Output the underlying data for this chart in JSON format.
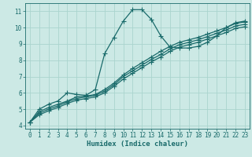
{
  "xlabel": "Humidex (Indice chaleur)",
  "bg_color": "#cce9e5",
  "line_color": "#1a6b6b",
  "grid_color": "#aad4ce",
  "xlim": [
    -0.5,
    23.5
  ],
  "ylim": [
    3.8,
    11.5
  ],
  "xticks": [
    0,
    1,
    2,
    3,
    4,
    5,
    6,
    7,
    8,
    9,
    10,
    11,
    12,
    13,
    14,
    15,
    16,
    17,
    18,
    19,
    20,
    21,
    22,
    23
  ],
  "yticks": [
    4,
    5,
    6,
    7,
    8,
    9,
    10,
    11
  ],
  "line1_x": [
    0,
    1,
    2,
    3,
    4,
    5,
    6,
    7,
    8,
    9,
    10,
    11,
    12,
    13,
    14,
    15,
    16,
    17,
    18,
    19,
    20,
    21,
    22,
    23
  ],
  "line1_y": [
    4.2,
    5.0,
    5.3,
    5.5,
    6.0,
    5.9,
    5.85,
    6.2,
    8.4,
    9.4,
    10.4,
    11.1,
    11.1,
    10.5,
    9.5,
    8.8,
    8.75,
    8.75,
    8.85,
    9.1,
    9.5,
    10.0,
    10.3,
    10.4
  ],
  "line2_x": [
    0,
    1,
    2,
    3,
    4,
    5,
    6,
    7,
    8,
    9,
    10,
    11,
    12,
    13,
    14,
    15,
    16,
    17,
    18,
    19,
    20,
    21,
    22,
    23
  ],
  "line2_y": [
    4.2,
    4.85,
    5.1,
    5.3,
    5.5,
    5.75,
    5.8,
    5.9,
    6.2,
    6.6,
    7.1,
    7.5,
    7.85,
    8.2,
    8.55,
    8.85,
    9.1,
    9.25,
    9.4,
    9.6,
    9.8,
    10.0,
    10.25,
    10.35
  ],
  "line3_x": [
    0,
    1,
    2,
    3,
    4,
    5,
    6,
    7,
    8,
    9,
    10,
    11,
    12,
    13,
    14,
    15,
    16,
    17,
    18,
    19,
    20,
    21,
    22,
    23
  ],
  "line3_y": [
    4.2,
    4.75,
    5.0,
    5.2,
    5.45,
    5.65,
    5.75,
    5.85,
    6.1,
    6.5,
    7.0,
    7.35,
    7.7,
    8.05,
    8.35,
    8.7,
    8.95,
    9.1,
    9.25,
    9.45,
    9.65,
    9.85,
    10.1,
    10.2
  ],
  "line4_x": [
    0,
    1,
    2,
    3,
    4,
    5,
    6,
    7,
    8,
    9,
    10,
    11,
    12,
    13,
    14,
    15,
    16,
    17,
    18,
    19,
    20,
    21,
    22,
    23
  ],
  "line4_y": [
    4.2,
    4.65,
    4.9,
    5.1,
    5.35,
    5.55,
    5.65,
    5.75,
    6.0,
    6.4,
    6.85,
    7.2,
    7.55,
    7.9,
    8.2,
    8.55,
    8.8,
    8.95,
    9.1,
    9.3,
    9.5,
    9.7,
    9.95,
    10.05
  ],
  "marker": "+",
  "markersize": 4,
  "linewidth": 0.9
}
